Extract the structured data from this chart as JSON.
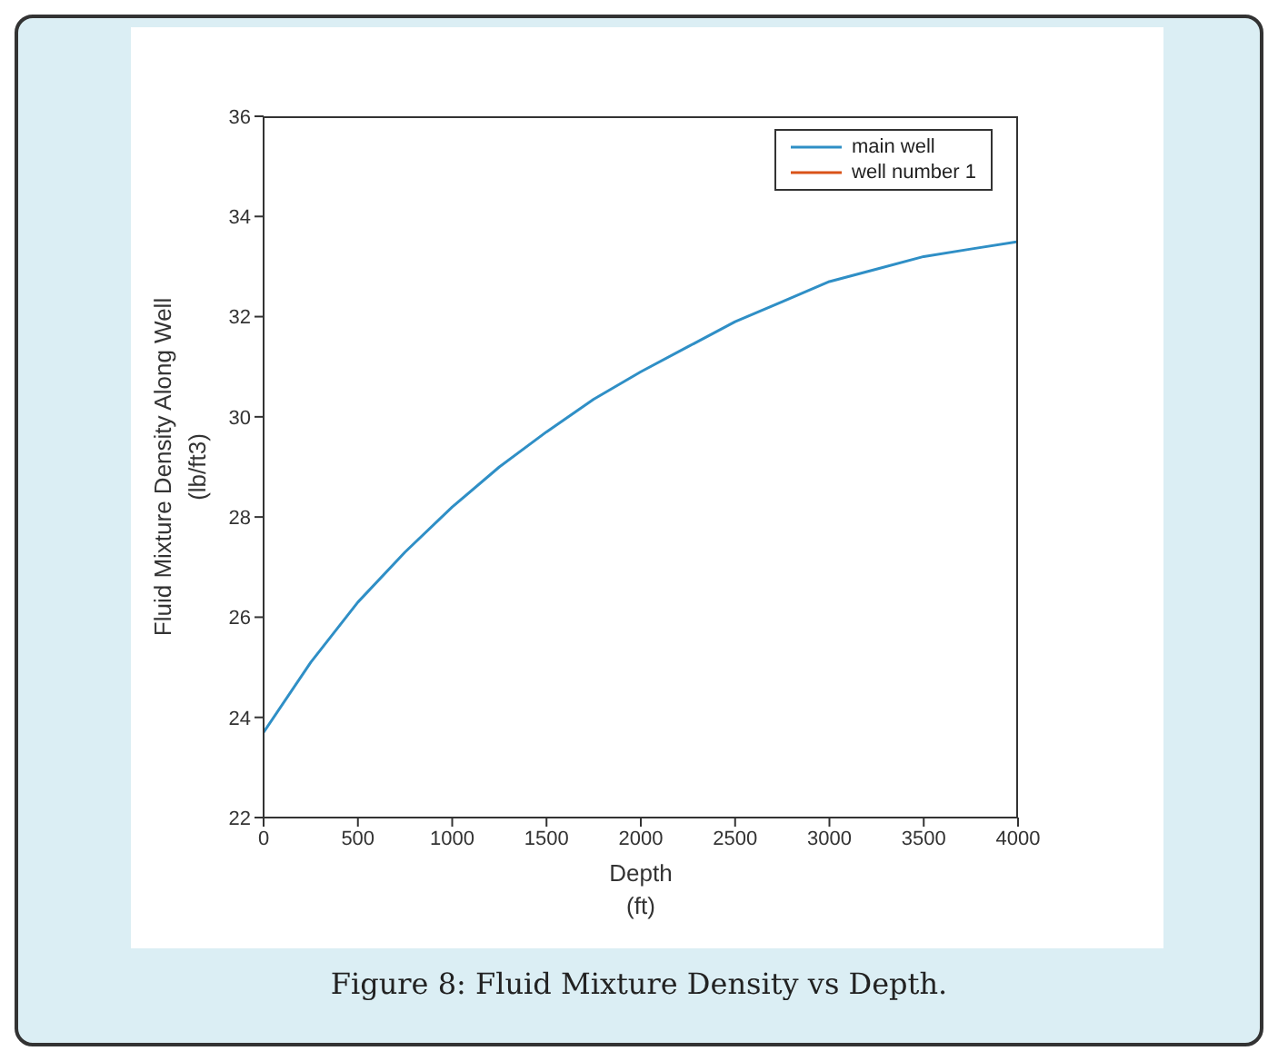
{
  "chart_data": {
    "type": "line",
    "xlabel": "Depth\n(ft)",
    "ylabel": "Fluid Mixture Density Along Well\n(lb/ft3)",
    "x": [
      0,
      250,
      500,
      750,
      1000,
      1250,
      1500,
      1750,
      2000,
      2250,
      2500,
      2750,
      3000,
      3100,
      3250,
      3500,
      3750,
      4000
    ],
    "series": [
      {
        "name": "main well",
        "color": "#2f8fc6",
        "values": [
          23.7,
          25.1,
          26.3,
          27.3,
          28.2,
          29.0,
          29.7,
          30.35,
          30.9,
          31.4,
          31.9,
          32.3,
          32.7,
          32.8,
          32.95,
          33.2,
          33.35,
          33.5
        ]
      },
      {
        "name": "well number 1",
        "color": "#d95319",
        "values": [
          null,
          null,
          null,
          null,
          null,
          null,
          null,
          null,
          null,
          null,
          null,
          null,
          null,
          null,
          null,
          null,
          null,
          null
        ]
      }
    ],
    "xlim": [
      0,
      4000
    ],
    "xticks": [
      0,
      500,
      1000,
      1500,
      2000,
      2500,
      3000,
      3500,
      4000
    ],
    "ylim": [
      22,
      36
    ],
    "yticks": [
      22,
      24,
      26,
      28,
      30,
      32,
      34,
      36
    ],
    "grid": false,
    "legend": "top right",
    "marker": "none",
    "line_style": "solid",
    "annotations": [
      "Figure 8: Fluid Mixture Density vs Depth."
    ]
  }
}
